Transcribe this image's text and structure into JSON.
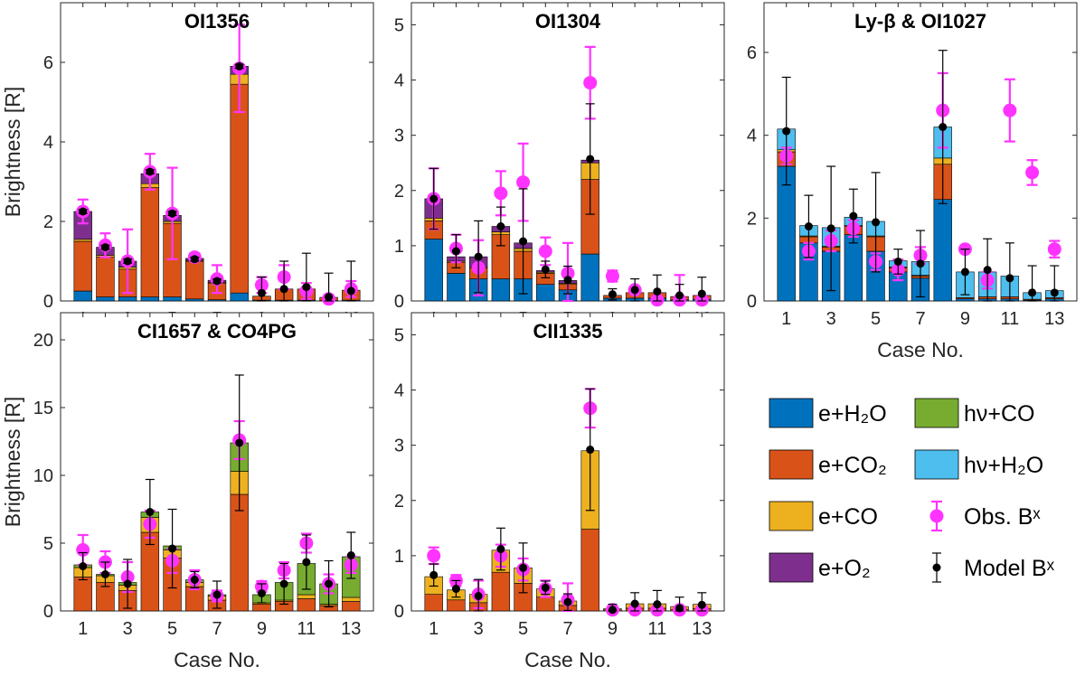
{
  "colors": {
    "e_h2o": "#0072BD",
    "e_co2": "#D95319",
    "e_co": "#EDB120",
    "e_o2": "#7E2F8E",
    "hv_co": "#77AC30",
    "hv_h2o": "#4DBEEE",
    "obs": "#FF33FF",
    "model": "#000000"
  },
  "legend": {
    "items": [
      {
        "key": "e_h2o",
        "label": "e+H₂O",
        "kind": "box"
      },
      {
        "key": "hv_co",
        "label": "hν+CO",
        "kind": "box"
      },
      {
        "key": "e_co2",
        "label": "e+CO₂",
        "kind": "box"
      },
      {
        "key": "hv_h2o",
        "label": "hν+H₂O",
        "kind": "box"
      },
      {
        "key": "e_co",
        "label": "e+CO",
        "kind": "box"
      },
      {
        "key": "obs",
        "label": "Obs. Bˣ",
        "kind": "obs"
      },
      {
        "key": "e_o2",
        "label": "e+O₂",
        "kind": "box"
      },
      {
        "key": "model",
        "label": "Model Bˣ",
        "kind": "model"
      }
    ]
  },
  "chart_data": [
    {
      "type": "bar",
      "title": "OI1356",
      "xlabel": "",
      "ylabel": "Brightness [R]",
      "ylim": [
        0,
        7.5
      ],
      "yticks": [
        0,
        2,
        4,
        6
      ],
      "categories": [
        1,
        2,
        3,
        4,
        5,
        6,
        7,
        8,
        9,
        10,
        11,
        12,
        13
      ],
      "xticklabels": [
        "1",
        "",
        "3",
        "",
        "5",
        "",
        "7",
        "",
        "9",
        "",
        "11",
        "",
        "13"
      ],
      "series": [
        {
          "name": "e+H2O",
          "key": "e_h2o",
          "values": [
            0.25,
            0.1,
            0.1,
            0.1,
            0.1,
            0.05,
            0.03,
            0.2,
            0.02,
            0.02,
            0.02,
            0.01,
            0.02
          ]
        },
        {
          "name": "e+CO2",
          "key": "e_co2",
          "values": [
            1.25,
            1.0,
            0.7,
            2.75,
            1.85,
            0.95,
            0.42,
            5.25,
            0.1,
            0.28,
            0.28,
            0.08,
            0.25
          ]
        },
        {
          "name": "e+CO",
          "key": "e_co",
          "values": [
            0.05,
            0.05,
            0.05,
            0.1,
            0.05,
            0.02,
            0.02,
            0.25,
            0.0,
            0.0,
            0.0,
            0.0,
            0.0
          ]
        },
        {
          "name": "e+O2",
          "key": "e_o2",
          "values": [
            0.7,
            0.2,
            0.15,
            0.25,
            0.15,
            0.05,
            0.05,
            0.2,
            0.0,
            0.0,
            0.0,
            0.0,
            0.0
          ]
        },
        {
          "name": "hv+CO",
          "key": "hv_co",
          "values": [
            0,
            0,
            0,
            0,
            0,
            0,
            0,
            0,
            0,
            0,
            0,
            0,
            0
          ]
        },
        {
          "name": "hv+H2O",
          "key": "hv_h2o",
          "values": [
            0,
            0,
            0,
            0,
            0,
            0,
            0,
            0,
            0,
            0,
            0,
            0,
            0
          ]
        }
      ],
      "obs": [
        2.25,
        1.4,
        1.0,
        3.25,
        2.2,
        1.1,
        0.55,
        5.85,
        0.4,
        0.6,
        0.25,
        0.05,
        0.3
      ],
      "obs_err": [
        0.3,
        0.3,
        0.8,
        0.45,
        1.15,
        0.1,
        0.35,
        1.1,
        0.2,
        0.3,
        0.2,
        0.1,
        0.2
      ],
      "model": [
        2.25,
        1.35,
        1.0,
        3.25,
        2.2,
        1.05,
        0.5,
        5.9,
        0.2,
        0.3,
        0.35,
        0.1,
        0.25
      ],
      "model_err": [
        0.05,
        0.05,
        0.05,
        0.05,
        0.05,
        0.05,
        0.05,
        0.05,
        0.4,
        0.7,
        0.85,
        0.6,
        0.75
      ]
    },
    {
      "type": "bar",
      "title": "OI1304",
      "xlabel": "",
      "ylabel": "",
      "ylim": [
        0,
        5.4
      ],
      "yticks": [
        0,
        1,
        2,
        3,
        4,
        5
      ],
      "categories": [
        1,
        2,
        3,
        4,
        5,
        6,
        7,
        8,
        9,
        10,
        11,
        12,
        13
      ],
      "xticklabels": [
        "1",
        "",
        "3",
        "",
        "5",
        "",
        "7",
        "",
        "9",
        "",
        "11",
        "",
        "13"
      ],
      "series": [
        {
          "name": "e+H2O",
          "key": "e_h2o",
          "values": [
            1.12,
            0.5,
            0.4,
            0.4,
            0.4,
            0.3,
            0.2,
            0.85,
            0.05,
            0.05,
            0.05,
            0.02,
            0.03
          ]
        },
        {
          "name": "e+CO2",
          "key": "e_co2",
          "values": [
            0.33,
            0.2,
            0.2,
            0.8,
            0.5,
            0.2,
            0.1,
            1.35,
            0.05,
            0.1,
            0.1,
            0.06,
            0.07
          ]
        },
        {
          "name": "e+CO",
          "key": "e_co",
          "values": [
            0.05,
            0.02,
            0.02,
            0.05,
            0.05,
            0.02,
            0.02,
            0.3,
            0.0,
            0.0,
            0.0,
            0.0,
            0.0
          ]
        },
        {
          "name": "e+O2",
          "key": "e_o2",
          "values": [
            0.35,
            0.08,
            0.18,
            0.1,
            0.1,
            0.03,
            0.05,
            0.05,
            0.0,
            0.0,
            0.0,
            0.0,
            0.0
          ]
        },
        {
          "name": "hv+CO",
          "key": "hv_co",
          "values": [
            0,
            0,
            0,
            0,
            0,
            0,
            0,
            0,
            0,
            0,
            0,
            0,
            0
          ]
        },
        {
          "name": "hv+H2O",
          "key": "hv_h2o",
          "values": [
            0,
            0,
            0,
            0,
            0,
            0,
            0,
            0,
            0,
            0,
            0,
            0,
            0
          ]
        }
      ],
      "obs": [
        1.85,
        0.95,
        0.6,
        1.95,
        2.15,
        0.9,
        0.5,
        3.95,
        0.45,
        0.2,
        0.02,
        0.02,
        0.02
      ],
      "obs_err": [
        0.55,
        0.25,
        0.5,
        0.4,
        0.7,
        0.25,
        0.55,
        0.65,
        0.1,
        0.05,
        0.05,
        0.45,
        0.05
      ],
      "model": [
        1.85,
        0.9,
        0.8,
        1.35,
        1.08,
        0.57,
        0.38,
        2.57,
        0.12,
        0.2,
        0.17,
        0.1,
        0.13
      ],
      "model_err": [
        0.55,
        0.3,
        0.65,
        0.35,
        0.95,
        0.15,
        0.25,
        1.0,
        0.1,
        0.2,
        0.3,
        0.2,
        0.3
      ]
    },
    {
      "type": "bar",
      "title": "Ly-β & OI1027",
      "xlabel": "Case No.",
      "ylabel": "",
      "ylim": [
        0,
        7.2
      ],
      "yticks": [
        0,
        2,
        4,
        6
      ],
      "categories": [
        1,
        2,
        3,
        4,
        5,
        6,
        7,
        8,
        9,
        10,
        11,
        12,
        13
      ],
      "xticklabels": [
        "1",
        "",
        "3",
        "",
        "5",
        "",
        "7",
        "",
        "9",
        "",
        "11",
        "",
        "13"
      ],
      "series": [
        {
          "name": "e+H2O",
          "key": "e_h2o",
          "values": [
            3.25,
            1.4,
            1.2,
            1.6,
            1.2,
            0.7,
            0.55,
            2.45,
            0.05,
            0.05,
            0.05,
            0.02,
            0.05
          ]
        },
        {
          "name": "e+CO2",
          "key": "e_co2",
          "values": [
            0.35,
            0.15,
            0.1,
            0.2,
            0.35,
            0.1,
            0.05,
            0.85,
            0.03,
            0.05,
            0.05,
            0.02,
            0.03
          ]
        },
        {
          "name": "e+CO",
          "key": "e_co",
          "values": [
            0.05,
            0.02,
            0.02,
            0.02,
            0.02,
            0.02,
            0.02,
            0.15,
            0.0,
            0.0,
            0.0,
            0.0,
            0.0
          ]
        },
        {
          "name": "e+O2",
          "key": "e_o2",
          "values": [
            0,
            0,
            0,
            0,
            0,
            0,
            0,
            0,
            0,
            0,
            0,
            0,
            0
          ]
        },
        {
          "name": "hv+CO",
          "key": "hv_co",
          "values": [
            0,
            0,
            0,
            0,
            0,
            0,
            0,
            0,
            0,
            0,
            0,
            0,
            0
          ]
        },
        {
          "name": "hv+H2O",
          "key": "hv_h2o",
          "values": [
            0.5,
            0.25,
            0.45,
            0.2,
            0.35,
            0.15,
            0.33,
            0.75,
            0.62,
            0.6,
            0.5,
            0.16,
            0.17
          ]
        }
      ],
      "obs": [
        3.5,
        1.2,
        1.45,
        1.75,
        0.95,
        0.75,
        1.1,
        4.6,
        1.25,
        0.5,
        4.6,
        3.1,
        1.25
      ],
      "obs_err": [
        0.2,
        0.2,
        0.25,
        0.2,
        0.2,
        0.25,
        0.2,
        0.9,
        0.05,
        0.2,
        0.75,
        0.3,
        0.2
      ],
      "model": [
        4.1,
        1.8,
        1.75,
        2.05,
        1.9,
        0.95,
        0.9,
        4.2,
        0.7,
        0.75,
        0.55,
        0.2,
        0.2
      ],
      "model_err": [
        1.3,
        0.75,
        1.5,
        0.65,
        1.2,
        0.3,
        0.8,
        1.85,
        0.55,
        0.75,
        0.85,
        0.65,
        0.65
      ]
    },
    {
      "type": "bar",
      "title": "CI1657 & CO4PG",
      "xlabel": "Case No.",
      "ylabel": "Brightness [R]",
      "ylim": [
        0,
        22
      ],
      "yticks": [
        0,
        5,
        10,
        15,
        20
      ],
      "categories": [
        1,
        2,
        3,
        4,
        5,
        6,
        7,
        8,
        9,
        10,
        11,
        12,
        13
      ],
      "xticklabels": [
        "1",
        "",
        "3",
        "",
        "5",
        "",
        "7",
        "",
        "9",
        "",
        "11",
        "",
        "13"
      ],
      "series": [
        {
          "name": "e+H2O",
          "key": "e_h2o",
          "values": [
            0,
            0,
            0,
            0,
            0,
            0,
            0,
            0,
            0,
            0,
            0,
            0,
            0
          ]
        },
        {
          "name": "e+CO2",
          "key": "e_co2",
          "values": [
            2.5,
            2.1,
            1.5,
            5.8,
            3.9,
            1.8,
            0.8,
            8.6,
            0.5,
            0.7,
            0.9,
            0.4,
            0.7
          ]
        },
        {
          "name": "e+CO",
          "key": "e_co",
          "values": [
            0.7,
            0.5,
            0.4,
            1.1,
            0.6,
            0.3,
            0.3,
            1.7,
            0.1,
            0.1,
            0.3,
            0.1,
            0.3
          ]
        },
        {
          "name": "e+O2",
          "key": "e_o2",
          "values": [
            0,
            0,
            0,
            0,
            0,
            0,
            0,
            0,
            0,
            0,
            0,
            0,
            0
          ]
        },
        {
          "name": "hv+CO",
          "key": "hv_co",
          "values": [
            0.2,
            0.1,
            0.2,
            0.4,
            0.3,
            0.2,
            0.1,
            2.1,
            0.6,
            1.3,
            2.3,
            1.5,
            3.0
          ]
        },
        {
          "name": "hv+H2O",
          "key": "hv_h2o",
          "values": [
            0,
            0,
            0,
            0,
            0,
            0,
            0,
            0,
            0,
            0,
            0,
            0,
            0
          ]
        }
      ],
      "obs": [
        4.5,
        3.6,
        2.5,
        6.4,
        3.7,
        2.3,
        1.1,
        12.6,
        1.8,
        3.0,
        5.0,
        2.0,
        3.4
      ],
      "obs_err": [
        1.1,
        0.8,
        1.1,
        1.0,
        0.9,
        0.7,
        0.4,
        1.4,
        0.4,
        0.6,
        0.7,
        0.7,
        0.6
      ],
      "model": [
        3.3,
        2.7,
        2.0,
        7.3,
        4.6,
        2.3,
        1.2,
        12.4,
        1.3,
        2.0,
        3.6,
        2.0,
        4.1
      ],
      "model_err": [
        1.0,
        0.9,
        1.8,
        2.4,
        2.9,
        0.6,
        1.0,
        5.0,
        0.7,
        1.5,
        2.0,
        1.7,
        1.7
      ]
    },
    {
      "type": "bar",
      "title": "CII1335",
      "xlabel": "Case No.",
      "ylabel": "",
      "ylim": [
        0,
        5.4
      ],
      "yticks": [
        0,
        1,
        2,
        3,
        4,
        5
      ],
      "categories": [
        1,
        2,
        3,
        4,
        5,
        6,
        7,
        8,
        9,
        10,
        11,
        12,
        13
      ],
      "xticklabels": [
        "1",
        "",
        "3",
        "",
        "5",
        "",
        "7",
        "",
        "9",
        "",
        "11",
        "",
        "13"
      ],
      "series": [
        {
          "name": "e+H2O",
          "key": "e_h2o",
          "values": [
            0,
            0,
            0,
            0,
            0,
            0,
            0,
            0,
            0,
            0,
            0,
            0,
            0
          ]
        },
        {
          "name": "e+CO2",
          "key": "e_co2",
          "values": [
            0.3,
            0.2,
            0.15,
            0.7,
            0.5,
            0.25,
            0.1,
            1.48,
            0.02,
            0.05,
            0.05,
            0.03,
            0.04
          ]
        },
        {
          "name": "e+CO",
          "key": "e_co",
          "values": [
            0.32,
            0.18,
            0.15,
            0.4,
            0.28,
            0.15,
            0.08,
            1.42,
            0.02,
            0.08,
            0.08,
            0.05,
            0.08
          ]
        },
        {
          "name": "e+O2",
          "key": "e_o2",
          "values": [
            0,
            0,
            0,
            0,
            0,
            0,
            0,
            0,
            0,
            0,
            0,
            0,
            0
          ]
        },
        {
          "name": "hv+CO",
          "key": "hv_co",
          "values": [
            0,
            0,
            0,
            0,
            0,
            0,
            0,
            0,
            0,
            0,
            0,
            0,
            0
          ]
        },
        {
          "name": "hv+H2O",
          "key": "hv_h2o",
          "values": [
            0,
            0,
            0,
            0,
            0,
            0,
            0,
            0,
            0,
            0,
            0,
            0,
            0
          ]
        }
      ],
      "obs": [
        1.0,
        0.55,
        0.3,
        1.0,
        0.75,
        0.4,
        0.2,
        3.67,
        0.02,
        0.02,
        0.02,
        0.02,
        0.02
      ],
      "obs_err": [
        0.15,
        0.1,
        0.25,
        0.2,
        0.2,
        0.15,
        0.3,
        0.35,
        0.05,
        0.05,
        0.05,
        0.05,
        0.05
      ],
      "model": [
        0.65,
        0.4,
        0.27,
        1.12,
        0.78,
        0.42,
        0.16,
        2.92,
        0.02,
        0.13,
        0.12,
        0.05,
        0.11
      ],
      "model_err": [
        0.2,
        0.15,
        0.3,
        0.38,
        0.45,
        0.12,
        0.15,
        1.1,
        0.1,
        0.2,
        0.25,
        0.2,
        0.22
      ]
    }
  ]
}
